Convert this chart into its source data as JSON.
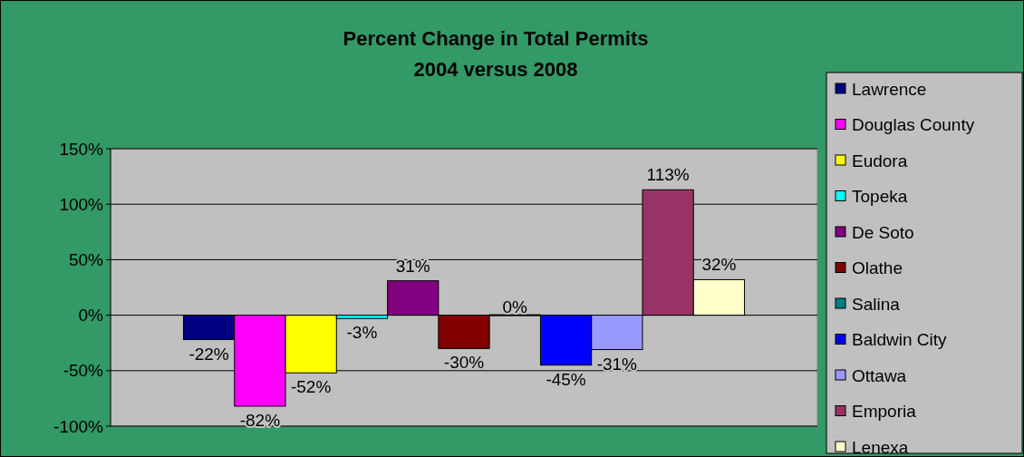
{
  "chart_data": {
    "type": "bar",
    "title": "Percent Change in Total Permits\n2004 versus 2008",
    "categories": [
      null
    ],
    "series": [
      {
        "name": "Lawrence",
        "color": "#000080",
        "values": [
          -22
        ],
        "value_labels": [
          "-22%"
        ]
      },
      {
        "name": "Douglas County",
        "color": "#ff00ff",
        "values": [
          -82
        ],
        "value_labels": [
          "-82%"
        ]
      },
      {
        "name": "Eudora",
        "color": "#ffff00",
        "values": [
          -52
        ],
        "value_labels": [
          "-52%"
        ]
      },
      {
        "name": "Topeka",
        "color": "#00ffff",
        "values": [
          -3
        ],
        "value_labels": [
          "-3%"
        ]
      },
      {
        "name": "De Soto",
        "color": "#800080",
        "values": [
          31
        ],
        "value_labels": [
          "31%"
        ]
      },
      {
        "name": "Olathe",
        "color": "#800000",
        "values": [
          -30
        ],
        "value_labels": [
          "-30%"
        ]
      },
      {
        "name": "Salina",
        "color": "#008080",
        "values": [
          0
        ],
        "value_labels": [
          "0%"
        ]
      },
      {
        "name": "Baldwin City",
        "color": "#0000ff",
        "values": [
          -45
        ],
        "value_labels": [
          "-45%"
        ]
      },
      {
        "name": "Ottawa",
        "color": "#9999ff",
        "values": [
          -31
        ],
        "value_labels": [
          "-31%"
        ]
      },
      {
        "name": "Emporia",
        "color": "#993366",
        "values": [
          113
        ],
        "value_labels": [
          "113%"
        ]
      },
      {
        "name": "Lenexa",
        "color": "#ffffcc",
        "values": [
          32
        ],
        "value_labels": [
          "32%"
        ]
      }
    ],
    "ylim": [
      -100,
      150
    ],
    "yticks": [
      {
        "value": -100,
        "label": "-100%"
      },
      {
        "value": -50,
        "label": "-50%"
      },
      {
        "value": 0,
        "label": "0%"
      },
      {
        "value": 50,
        "label": "50%"
      },
      {
        "value": 100,
        "label": "100%"
      },
      {
        "value": 150,
        "label": "150%"
      }
    ],
    "grid": "y",
    "legend": "right"
  }
}
